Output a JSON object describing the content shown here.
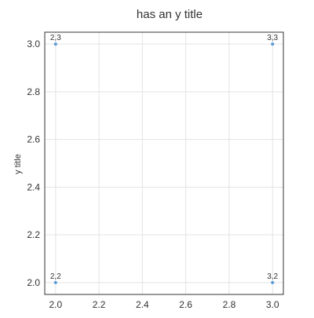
{
  "chart_data": {
    "type": "scatter",
    "title": "has an y title",
    "xlabel": "",
    "ylabel": "y title",
    "xlim": [
      1.95,
      3.05
    ],
    "ylim": [
      1.95,
      3.05
    ],
    "x_ticks": [
      2.0,
      2.2,
      2.4,
      2.6,
      2.8,
      3.0
    ],
    "y_ticks": [
      2.0,
      2.2,
      2.4,
      2.6,
      2.8,
      3.0
    ],
    "tick_decimals": 1,
    "grid": true,
    "legend": "none",
    "marker_color": "#5b9bd5",
    "points": [
      {
        "x": 2,
        "y": 3,
        "label": "2,3"
      },
      {
        "x": 3,
        "y": 3,
        "label": "3,3"
      },
      {
        "x": 2,
        "y": 2,
        "label": "2,2"
      },
      {
        "x": 3,
        "y": 2,
        "label": "3,2"
      }
    ]
  }
}
